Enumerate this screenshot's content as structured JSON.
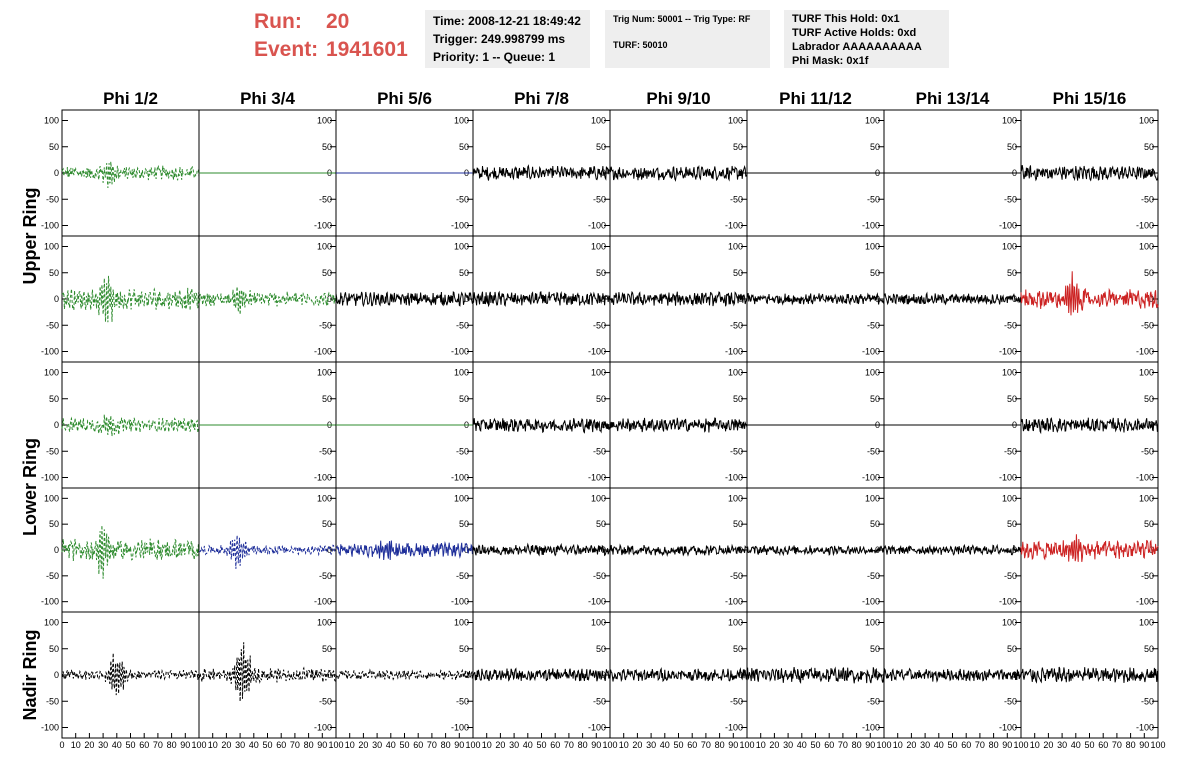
{
  "header": {
    "run_label": "Run:",
    "run_value": "20",
    "event_label": "Event:",
    "event_value": "1941601",
    "time": "Time: 2008-12-21 18:49:42",
    "trigger": "Trigger: 249.998799 ms",
    "priority": "Priority: 1 -- Queue: 1",
    "trig_num": "Trig Num: 50001 -- Trig Type: RF",
    "turf": "TURF: 50010",
    "turf_hold": "TURF This Hold: 0x1",
    "turf_active": "TURF Active Holds: 0xd",
    "labrador": "Labrador AAAAAAAAAA",
    "phi_mask": "Phi Mask: 0x1f"
  },
  "chart_data": {
    "type": "line",
    "columns": [
      "Phi 1/2",
      "Phi 3/4",
      "Phi 5/6",
      "Phi 7/8",
      "Phi 9/10",
      "Phi 11/12",
      "Phi 13/14",
      "Phi 15/16"
    ],
    "ring_labels": [
      {
        "name": "Upper Ring",
        "rows": [
          0,
          1
        ]
      },
      {
        "name": "Lower Ring",
        "rows": [
          2,
          3
        ]
      },
      {
        "name": "Nadir Ring",
        "rows": [
          4
        ]
      }
    ],
    "ylim": [
      -120,
      120
    ],
    "yticks": [
      -100,
      -50,
      0,
      50,
      100
    ],
    "xlim": [
      0,
      100
    ],
    "xtick_labels": [
      "0",
      "10",
      "20",
      "30",
      "40",
      "50",
      "60",
      "70",
      "80",
      "90",
      "100"
    ],
    "colors": {
      "green": "#2e8b2e",
      "blue": "#1f2f9a",
      "black": "#000000",
      "red": "#cc2222"
    },
    "panels": [
      [
        {
          "color": "green",
          "style": "dashed",
          "amp": 9,
          "burst": 34,
          "burst_amp": 22
        },
        {
          "color": "green",
          "style": "solid",
          "flat": true
        },
        {
          "color": "blue",
          "style": "solid",
          "flat": true
        },
        {
          "color": "black",
          "style": "solid",
          "amp": 9
        },
        {
          "color": "black",
          "style": "solid",
          "amp": 9
        },
        {
          "color": "black",
          "style": "solid",
          "flat": true
        },
        {
          "color": "black",
          "style": "solid",
          "flat": true
        },
        {
          "color": "black",
          "style": "solid",
          "amp": 10
        }
      ],
      [
        {
          "color": "green",
          "style": "dashed",
          "amp": 14,
          "burst": 32,
          "burst_amp": 55
        },
        {
          "color": "green",
          "style": "dashed",
          "amp": 9,
          "burst": 30,
          "burst_amp": 25
        },
        {
          "color": "black",
          "style": "solid",
          "amp": 9
        },
        {
          "color": "black",
          "style": "solid",
          "amp": 9
        },
        {
          "color": "black",
          "style": "solid",
          "amp": 9
        },
        {
          "color": "black",
          "style": "solid",
          "amp": 7
        },
        {
          "color": "black",
          "style": "solid",
          "amp": 7
        },
        {
          "color": "red",
          "style": "solid",
          "amp": 12,
          "burst": 38,
          "burst_amp": 40
        }
      ],
      [
        {
          "color": "green",
          "style": "dashed",
          "amp": 9,
          "burst": 34,
          "burst_amp": 22
        },
        {
          "color": "green",
          "style": "solid",
          "flat": true
        },
        {
          "color": "green",
          "style": "solid",
          "flat": true
        },
        {
          "color": "black",
          "style": "solid",
          "amp": 9
        },
        {
          "color": "black",
          "style": "solid",
          "amp": 9
        },
        {
          "color": "black",
          "style": "solid",
          "flat": true
        },
        {
          "color": "black",
          "style": "solid",
          "flat": true
        },
        {
          "color": "black",
          "style": "solid",
          "amp": 9
        }
      ],
      [
        {
          "color": "green",
          "style": "dashed",
          "amp": 14,
          "burst": 30,
          "burst_amp": 50
        },
        {
          "color": "blue",
          "style": "dashed",
          "amp": 6,
          "burst": 28,
          "burst_amp": 30
        },
        {
          "color": "blue",
          "style": "solid",
          "amp": 9,
          "burst": 36,
          "burst_amp": 18
        },
        {
          "color": "black",
          "style": "solid",
          "amp": 7
        },
        {
          "color": "black",
          "style": "solid",
          "amp": 7
        },
        {
          "color": "black",
          "style": "solid",
          "amp": 6
        },
        {
          "color": "black",
          "style": "solid",
          "amp": 6
        },
        {
          "color": "red",
          "style": "solid",
          "amp": 12,
          "burst": 40,
          "burst_amp": 25
        }
      ],
      [
        {
          "color": "black",
          "style": "dashed",
          "amp": 6,
          "burst": 40,
          "burst_amp": 40
        },
        {
          "color": "black",
          "style": "dashed",
          "amp": 9,
          "burst": 32,
          "burst_amp": 55
        },
        {
          "color": "black",
          "style": "dashed",
          "amp": 6
        },
        {
          "color": "black",
          "style": "solid",
          "amp": 8
        },
        {
          "color": "black",
          "style": "solid",
          "amp": 8
        },
        {
          "color": "black",
          "style": "solid",
          "amp": 10
        },
        {
          "color": "black",
          "style": "solid",
          "amp": 8
        },
        {
          "color": "black",
          "style": "solid",
          "amp": 10
        }
      ]
    ]
  }
}
